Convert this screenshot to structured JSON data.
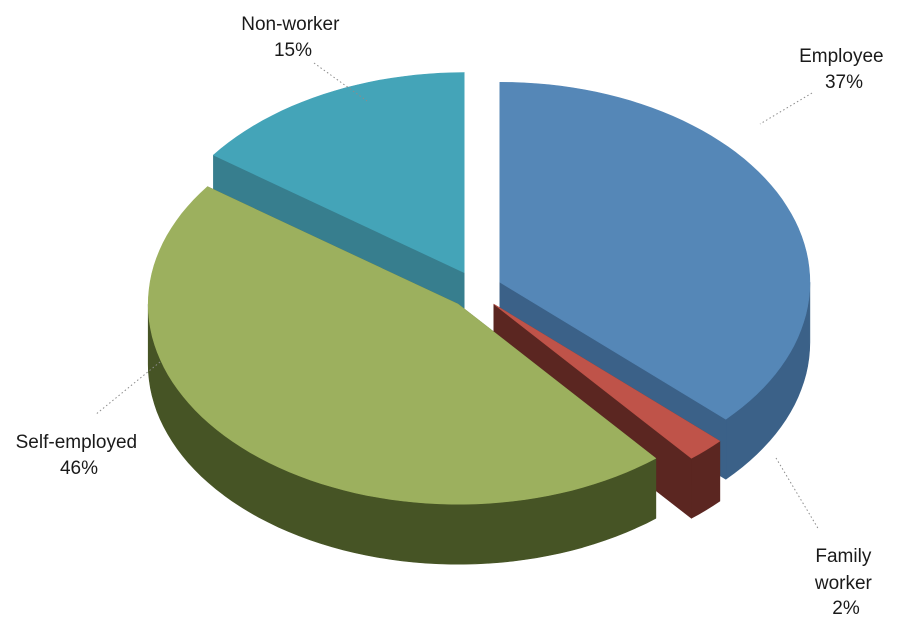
{
  "chart_data": {
    "type": "pie",
    "title": "",
    "categories": [
      "Employee",
      "Family worker",
      "Self-employed",
      "Non-worker"
    ],
    "values": [
      37,
      2,
      46,
      15
    ],
    "value_unit": "%",
    "three_d": true,
    "exploded": true,
    "legend": "none",
    "data_labels": [
      {
        "lines": [
          "Employee",
          "37%"
        ]
      },
      {
        "lines": [
          "Family",
          "worker",
          "2%"
        ]
      },
      {
        "lines": [
          "Self-employed",
          "46%"
        ]
      },
      {
        "lines": [
          "Non-worker",
          "15%"
        ]
      }
    ],
    "colors": {
      "Employee": {
        "top": "#5587b7",
        "side": "#3b6188"
      },
      "Family worker": {
        "top": "#bf5349",
        "side": "#5b2621"
      },
      "Self-employed": {
        "top": "#9cb05e",
        "side": "#465425"
      },
      "Non-worker": {
        "top": "#44a4b8",
        "side": "#377e8e"
      }
    }
  }
}
